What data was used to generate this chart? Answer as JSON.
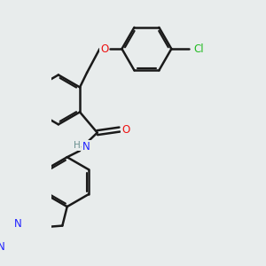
{
  "background_color": "#e8ecec",
  "bond_color": "#1a1a1a",
  "bond_lw": 1.8,
  "atom_colors": {
    "N": "#2020ff",
    "O": "#ee1111",
    "Cl": "#22bb22",
    "H": "#6a9090"
  },
  "font_size_atom": 8.5,
  "font_size_small": 7.5
}
